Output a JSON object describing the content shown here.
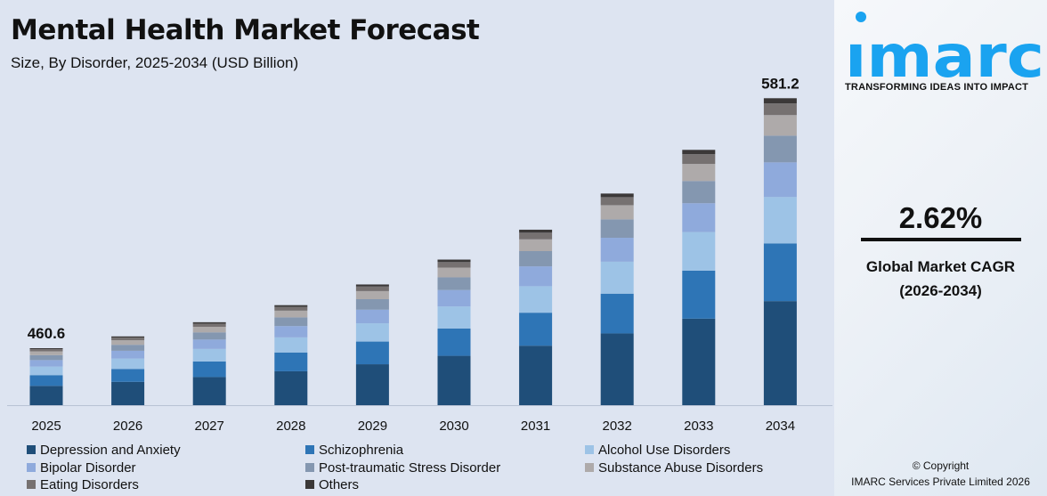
{
  "header": {
    "title": "Mental Health Market Forecast",
    "subtitle": "Size, By Disorder, 2025-2034 (USD Billion)"
  },
  "brand": {
    "logo_text": "imarc",
    "tagline": "TRANSFORMING IDEAS INTO IMPACT",
    "color": "#1aa3f0"
  },
  "cagr": {
    "value": "2.62%",
    "label_line1": "Global Market CAGR",
    "label_line2": "(2026-2034)"
  },
  "copyright": {
    "line1": "© Copyright",
    "line2": "IMARC Services Private Limited 2026"
  },
  "chart_data": {
    "type": "bar",
    "stacked": true,
    "title": "Mental Health Market Forecast",
    "subtitle": "Size, By Disorder, 2025-2034 (USD Billion)",
    "categories": [
      "2025",
      "2026",
      "2027",
      "2028",
      "2029",
      "2030",
      "2031",
      "2032",
      "2033",
      "2034"
    ],
    "totals": [
      460.6,
      472.7,
      485.1,
      497.8,
      510.9,
      524.3,
      538.0,
      552.1,
      566.6,
      581.2
    ],
    "total_labels": {
      "2025": "460.6",
      "2034": "581.2"
    },
    "series": [
      {
        "name": "Depression and Anxiety",
        "color": "#1f4e79",
        "share": 0.339
      },
      {
        "name": "Schizophrenia",
        "color": "#2e75b6",
        "share": 0.188
      },
      {
        "name": "Alcohol Use Disorders",
        "color": "#9dc3e6",
        "share": 0.151
      },
      {
        "name": "Bipolar Disorder",
        "color": "#8faadc",
        "share": 0.113
      },
      {
        "name": "Post-traumatic Stress Disorder",
        "color": "#8497b0",
        "share": 0.087
      },
      {
        "name": "Substance Abuse Disorders",
        "color": "#aeaaaa",
        "share": 0.067
      },
      {
        "name": "Eating Disorders",
        "color": "#767171",
        "share": 0.038
      },
      {
        "name": "Others",
        "color": "#3b3838",
        "share": 0.017
      }
    ],
    "grid": false,
    "legend": "bottom"
  }
}
